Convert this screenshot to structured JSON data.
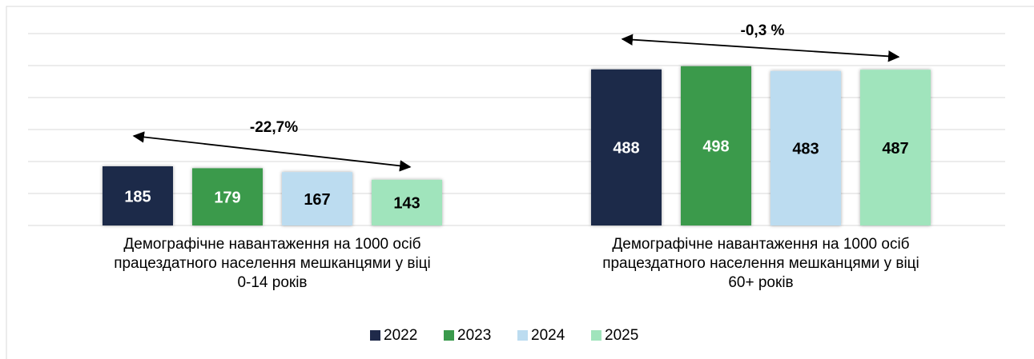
{
  "chart_data": {
    "type": "bar",
    "categories": [
      "Демографічне навантаження на 1000 осіб\nпрацездатного населення мешканцями у віці\n0-14 років",
      "Демографічне навантаження на 1000 осіб\nпрацездатного населення мешканцями у віці\n60+ років"
    ],
    "series": [
      {
        "name": "2022",
        "color": "#1f2a4a",
        "values": [
          185,
          488
        ]
      },
      {
        "name": "2023",
        "color": "#3a9a4c",
        "values": [
          179,
          498
        ]
      },
      {
        "name": "2024",
        "color": "#bcdcf0",
        "values": [
          167,
          483
        ]
      },
      {
        "name": "2025",
        "color": "#a0e4bc",
        "values": [
          143,
          487
        ]
      }
    ],
    "annotations": [
      "-22,7%",
      "-0,3 %"
    ],
    "ylim": [
      0,
      600
    ],
    "yticks": [
      0,
      100,
      200,
      300,
      400,
      500,
      600
    ],
    "grid": true,
    "legend": "bottom"
  }
}
